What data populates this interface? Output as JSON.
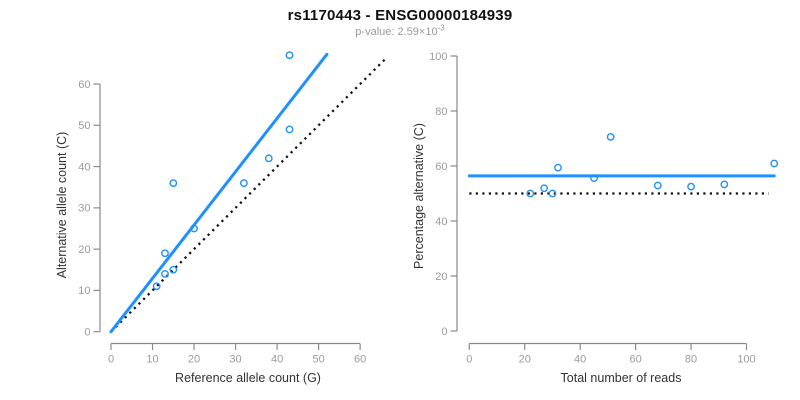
{
  "header": {
    "title": "rs1170443 - ENSG00000184939",
    "pvalue_base": "p-value: 2.59×10",
    "pvalue_exponent": "-3"
  },
  "colors": {
    "line_blue": "#1E90FF",
    "point_blue": "#1E90FF",
    "identity_black": "#111111",
    "axis_gray": "#8a8a8a",
    "tick_label_gray": "#9b9b9b",
    "axis_label_dark": "#333333",
    "background": "#ffffff"
  },
  "chart_data": [
    {
      "type": "scatter",
      "title": "rs1170443 - ENSG00000184939",
      "subtitle": "p-value: 2.59×10^-3",
      "xlabel": "Reference allele count (G)",
      "ylabel": "Alternative allele count (C)",
      "xlim": [
        0,
        66
      ],
      "ylim": [
        0,
        67
      ],
      "xticks": [
        0,
        10,
        20,
        30,
        40,
        50,
        60
      ],
      "yticks": [
        0,
        10,
        20,
        30,
        40,
        50,
        60
      ],
      "grid": false,
      "marker": "open-circle",
      "points": [
        [
          11,
          11
        ],
        [
          13,
          14
        ],
        [
          15,
          15
        ],
        [
          13,
          19
        ],
        [
          20,
          25
        ],
        [
          15,
          36
        ],
        [
          32,
          36
        ],
        [
          38,
          42
        ],
        [
          43,
          49
        ],
        [
          43,
          67
        ]
      ],
      "fit_line": {
        "x1": 0,
        "y1": 0,
        "x2": 52,
        "y2": 67.2,
        "style": "solid",
        "color": "#1E90FF"
      },
      "identity_line": {
        "x1": 0,
        "y1": 0,
        "x2": 66,
        "y2": 66,
        "style": "dotted",
        "color": "#111111"
      }
    },
    {
      "type": "scatter",
      "xlabel": "Total number of reads",
      "ylabel": "Percentage alternative (C)",
      "xlim": [
        0,
        110
      ],
      "ylim": [
        0,
        100
      ],
      "xticks": [
        0,
        20,
        40,
        60,
        80,
        100
      ],
      "yticks": [
        0,
        20,
        40,
        60,
        80,
        100
      ],
      "grid": false,
      "marker": "open-circle",
      "points": [
        [
          22,
          50
        ],
        [
          27,
          51.9
        ],
        [
          30,
          50
        ],
        [
          32,
          59.4
        ],
        [
          45,
          55.6
        ],
        [
          51,
          70.6
        ],
        [
          68,
          52.9
        ],
        [
          80,
          52.5
        ],
        [
          92,
          53.3
        ],
        [
          110,
          60.9
        ]
      ],
      "fit_line": {
        "x1": 0,
        "y1": 56.4,
        "x2": 110,
        "y2": 56.4,
        "style": "solid",
        "color": "#1E90FF"
      },
      "identity_line": {
        "x1": 0,
        "y1": 50,
        "x2": 108,
        "y2": 50,
        "style": "dotted",
        "color": "#111111"
      }
    }
  ]
}
